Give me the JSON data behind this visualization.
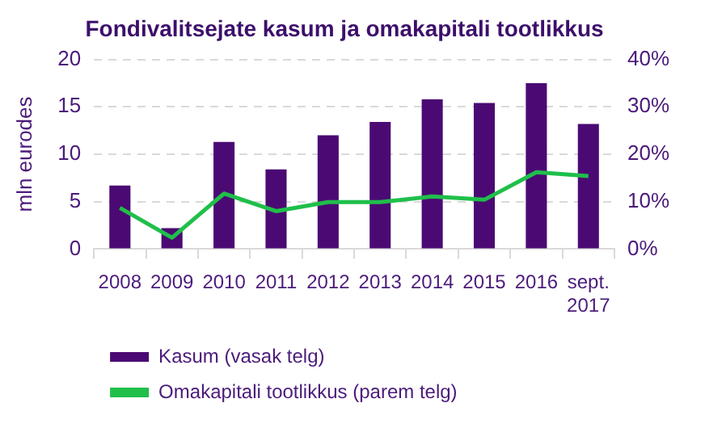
{
  "chart_data": {
    "type": "bar",
    "title": "Fondivalitsejate kasum ja omakapitali tootlikkus",
    "ylabel": "mln eurodes",
    "categories": [
      "2008",
      "2009",
      "2010",
      "2011",
      "2012",
      "2013",
      "2014",
      "2015",
      "2016",
      "sept. 2017"
    ],
    "series": [
      {
        "name": "Kasum (vasak telg)",
        "color": "#4b0a73",
        "values": [
          6.7,
          2.2,
          11.3,
          8.4,
          12.0,
          13.4,
          15.8,
          15.4,
          17.5,
          13.2
        ]
      },
      {
        "name": "Omakapitali tootlikkus (parem telg)",
        "type": "line",
        "axis": "y2",
        "color": "#1fbf4a",
        "values": [
          8.7,
          2.4,
          11.7,
          8.0,
          9.9,
          9.9,
          11.1,
          10.4,
          16.2,
          15.4
        ]
      }
    ],
    "ylim": [
      0,
      20
    ],
    "yticks": [
      0,
      5,
      10,
      15,
      20
    ],
    "y2lim": [
      0,
      40
    ],
    "y2ticks": [
      {
        "value": 0,
        "label": "0%"
      },
      {
        "value": 10,
        "label": "10%"
      },
      {
        "value": 20,
        "label": "20%"
      },
      {
        "value": 30,
        "label": "30%"
      },
      {
        "value": 40,
        "label": "40%"
      }
    ],
    "grid": "y",
    "legend": "bottom left",
    "marker": "none",
    "line_style": "solid"
  }
}
